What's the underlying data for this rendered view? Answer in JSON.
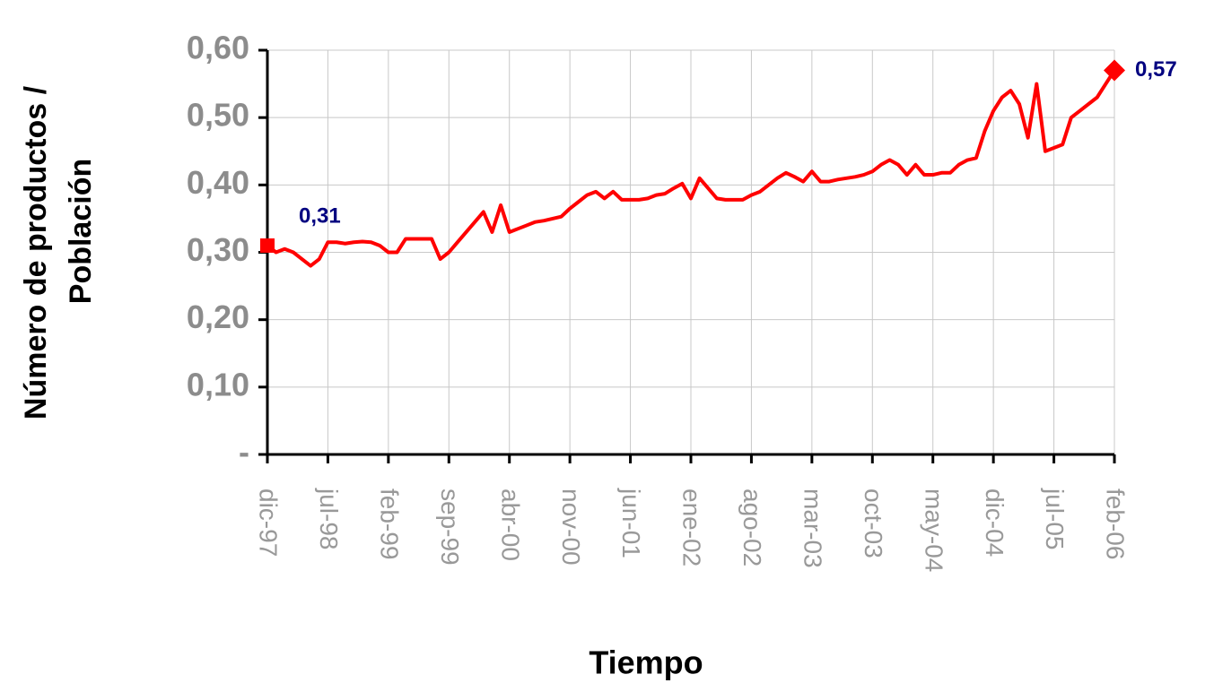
{
  "chart_data": {
    "type": "line",
    "x_label": "Tiempo",
    "y_label": [
      "Número  de productos /",
      "Población"
    ],
    "categories": [
      "dic-97",
      null,
      null,
      null,
      null,
      null,
      null,
      "jul-98",
      null,
      null,
      null,
      null,
      null,
      null,
      "feb-99",
      null,
      null,
      null,
      null,
      null,
      null,
      "sep-99",
      null,
      null,
      null,
      null,
      null,
      null,
      "abr-00",
      null,
      null,
      null,
      null,
      null,
      null,
      "nov-00",
      null,
      null,
      null,
      null,
      null,
      null,
      "jun-01",
      null,
      null,
      null,
      null,
      null,
      null,
      "ene-02",
      null,
      null,
      null,
      null,
      null,
      null,
      "ago-02",
      null,
      null,
      null,
      null,
      null,
      null,
      "mar-03",
      null,
      null,
      null,
      null,
      null,
      null,
      "oct-03",
      null,
      null,
      null,
      null,
      null,
      null,
      "may-04",
      null,
      null,
      null,
      null,
      null,
      null,
      "dic-04",
      null,
      null,
      null,
      null,
      null,
      null,
      "jul-05",
      null,
      null,
      null,
      null,
      null,
      null,
      "feb-06"
    ],
    "series": [
      {
        "name": "Número de productos / Población",
        "color": "#ff0000",
        "values": [
          0.31,
          0.3,
          0.305,
          0.3,
          0.29,
          0.28,
          0.29,
          0.315,
          0.315,
          0.313,
          0.315,
          0.316,
          0.315,
          0.31,
          0.3,
          0.3,
          0.32,
          0.32,
          0.32,
          0.32,
          0.29,
          0.3,
          0.315,
          0.33,
          0.345,
          0.36,
          0.33,
          0.37,
          0.33,
          0.335,
          0.34,
          0.345,
          0.347,
          0.35,
          0.353,
          0.365,
          0.375,
          0.385,
          0.39,
          0.38,
          0.39,
          0.378,
          0.378,
          0.378,
          0.38,
          0.385,
          0.387,
          0.395,
          0.402,
          0.38,
          0.41,
          0.395,
          0.38,
          0.378,
          0.378,
          0.378,
          0.385,
          0.39,
          0.4,
          0.41,
          0.418,
          0.412,
          0.405,
          0.42,
          0.405,
          0.405,
          0.408,
          0.41,
          0.412,
          0.415,
          0.42,
          0.43,
          0.437,
          0.43,
          0.415,
          0.43,
          0.415,
          0.415,
          0.418,
          0.418,
          0.43,
          0.437,
          0.44,
          0.48,
          0.51,
          0.53,
          0.54,
          0.52,
          0.47,
          0.55,
          0.45,
          0.455,
          0.46,
          0.5,
          0.51,
          0.52,
          0.53,
          0.55,
          0.57
        ],
        "value_labels": [
          "0,31",
          null,
          null,
          null,
          null,
          null,
          null,
          null,
          null,
          null,
          null,
          null,
          null,
          null,
          null,
          null,
          null,
          null,
          null,
          null,
          null,
          null,
          null,
          null,
          null,
          null,
          null,
          null,
          null,
          null,
          null,
          null,
          null,
          null,
          null,
          null,
          null,
          null,
          null,
          null,
          null,
          null,
          null,
          null,
          null,
          null,
          null,
          null,
          null,
          null,
          null,
          null,
          null,
          null,
          null,
          null,
          null,
          null,
          null,
          null,
          null,
          null,
          null,
          null,
          null,
          null,
          null,
          null,
          null,
          null,
          null,
          null,
          null,
          null,
          null,
          null,
          null,
          null,
          null,
          null,
          null,
          null,
          null,
          null,
          null,
          null,
          null,
          null,
          null,
          null,
          null,
          null,
          null,
          null,
          null,
          null,
          null,
          null,
          "0,57"
        ]
      }
    ],
    "ylim": [
      0,
      0.6
    ],
    "yticks": [
      {
        "value": 0,
        "label": "-"
      },
      {
        "value": 0.1,
        "label": "0,10"
      },
      {
        "value": 0.2,
        "label": "0,20"
      },
      {
        "value": 0.3,
        "label": "0,30"
      },
      {
        "value": 0.4,
        "label": "0,40"
      },
      {
        "value": 0.5,
        "label": "0,50"
      },
      {
        "value": 0.6,
        "label": "0,60"
      }
    ],
    "grid": true
  }
}
